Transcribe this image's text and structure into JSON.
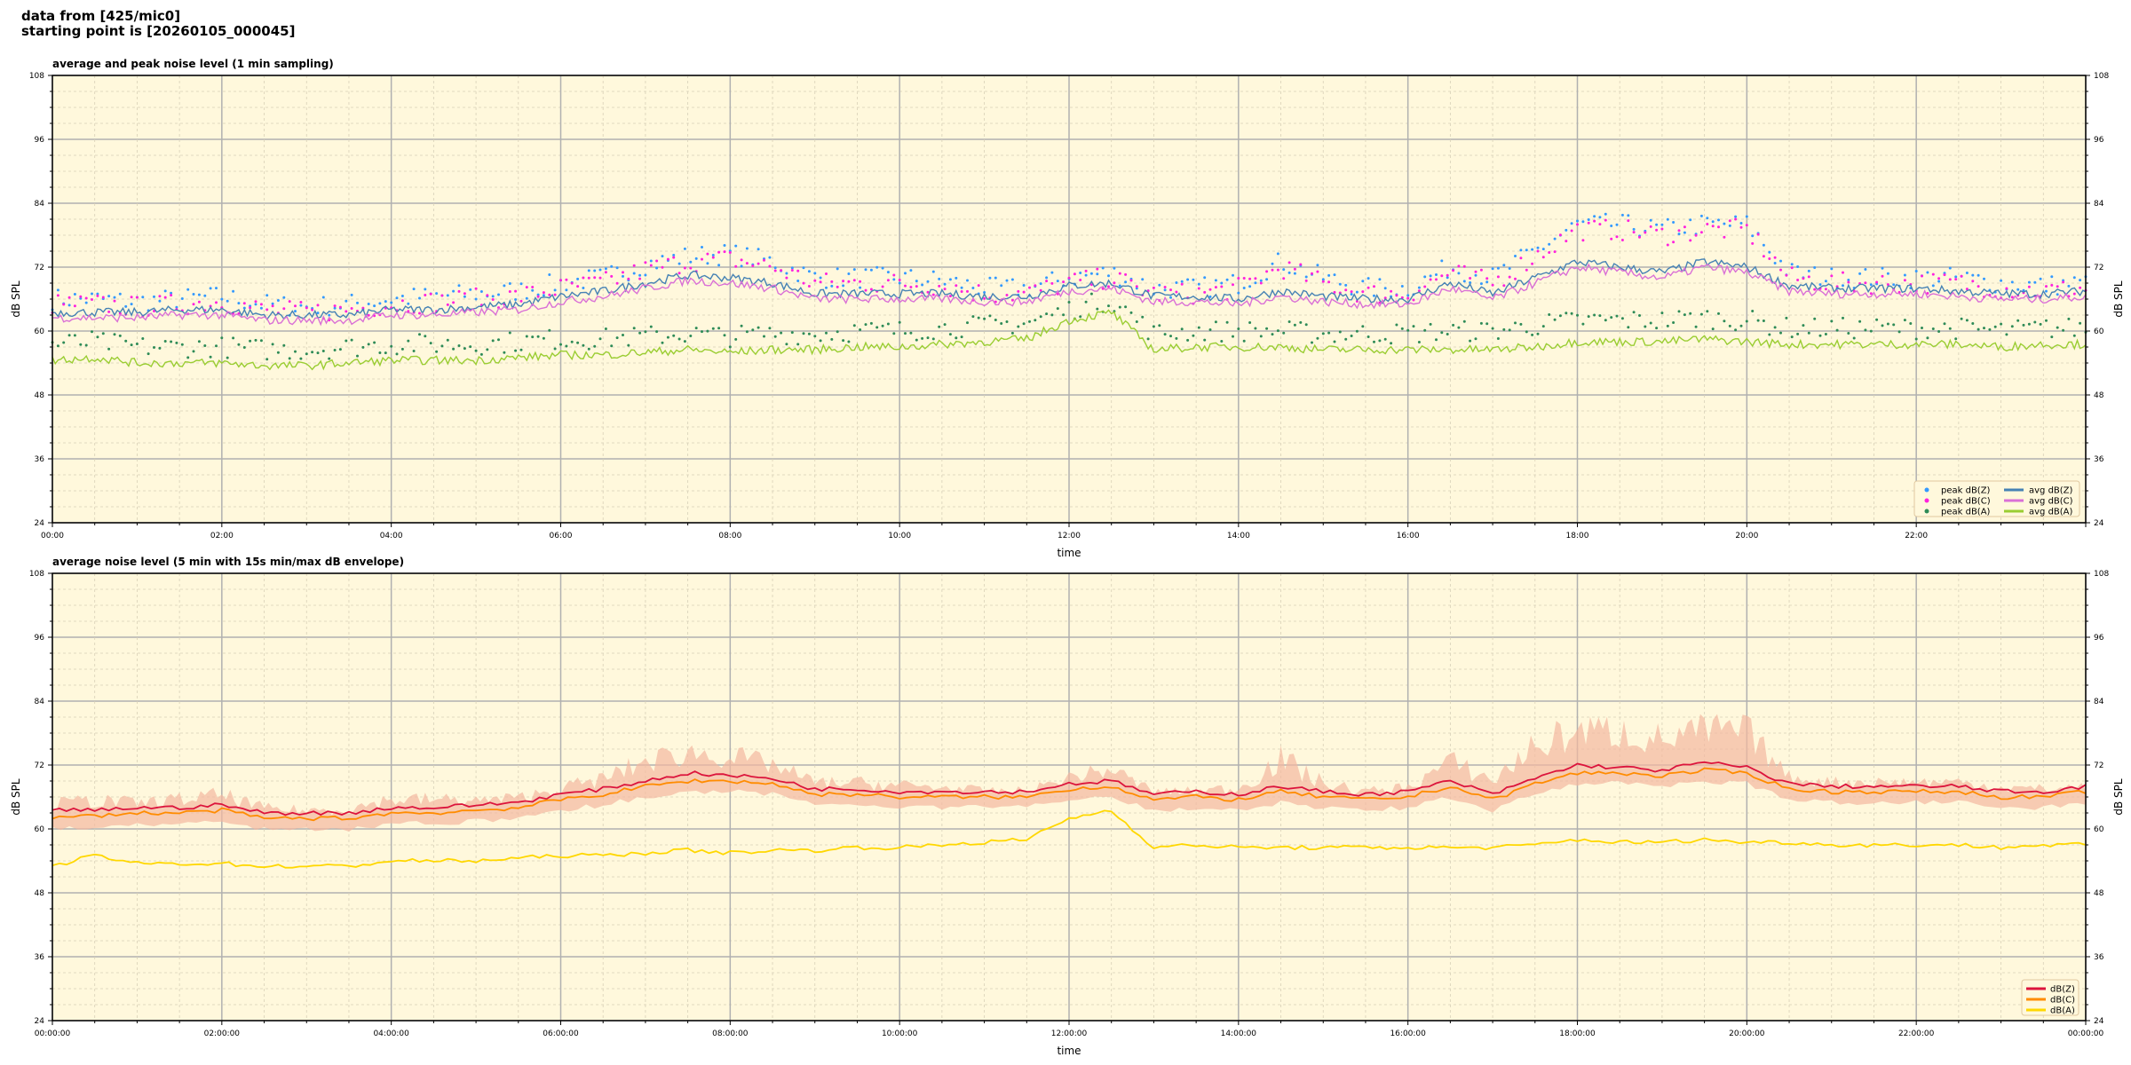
{
  "header": {
    "line1": "data from [425/mic0]",
    "line2": "starting point is [20260105_000045]"
  },
  "colors": {
    "background": "#fff8dc",
    "peak_z": "#3399ff",
    "peak_c": "#ff22dd",
    "peak_a": "#2e8b57",
    "avg_z": "#4682b4",
    "avg_c": "#da70d6",
    "avg_a": "#9acd32",
    "z": "#dc143c",
    "c": "#ff8c00",
    "a": "#ffd700",
    "envelope": "#f4b8a0"
  },
  "chart_data": [
    {
      "type": "line",
      "title": "average and peak noise level (1 min sampling)",
      "xlabel": "time",
      "ylabel": "dB SPL",
      "ylim": [
        24,
        108
      ],
      "xlim_hours": [
        0,
        24
      ],
      "yticks": [
        "108",
        "96",
        "84",
        "72",
        "60",
        "48",
        "36",
        "24"
      ],
      "xticks": [
        "00:00",
        "02:00",
        "04:00",
        "06:00",
        "08:00",
        "10:00",
        "12:00",
        "14:00",
        "16:00",
        "18:00",
        "20:00",
        "22:00"
      ],
      "grid": true,
      "legend": "lower-right",
      "x_hours_step": 0.5,
      "series": [
        {
          "name": "peak dB(Z)",
          "kind": "scatter",
          "color": "peak_z",
          "values": [
            66,
            66,
            65.5,
            66,
            66.5,
            65,
            64.5,
            65,
            66,
            66.5,
            67,
            67.5,
            69,
            70,
            72.5,
            74,
            74.5,
            73,
            70,
            70,
            70,
            69.5,
            68,
            68,
            70,
            71,
            68,
            68,
            69,
            73,
            70,
            68,
            68,
            72,
            70,
            75,
            80,
            80,
            79,
            80,
            80,
            71,
            70,
            70,
            70,
            70,
            69,
            68.5,
            69
          ]
        },
        {
          "name": "peak dB(C)",
          "kind": "scatter",
          "color": "peak_c",
          "values": [
            65,
            65,
            64.5,
            65,
            65.5,
            64,
            63.5,
            64,
            65,
            65.5,
            66,
            66.5,
            68,
            69,
            71.5,
            73,
            73.5,
            72,
            69,
            69,
            69,
            68.5,
            67,
            67,
            69,
            70,
            67,
            67,
            68,
            72,
            69,
            67,
            67,
            71,
            69,
            74,
            79,
            79,
            78,
            79,
            79,
            70,
            69,
            69,
            69,
            69,
            68,
            67.5,
            68
          ]
        },
        {
          "name": "peak dB(A)",
          "kind": "scatter",
          "color": "peak_a",
          "values": [
            57.5,
            58,
            57,
            57,
            57,
            56.5,
            56.5,
            57,
            57.5,
            57.5,
            57.5,
            58,
            58.5,
            58.5,
            59,
            59.5,
            59,
            59.5,
            59.5,
            60,
            60,
            60.5,
            61,
            61.5,
            64,
            66,
            59.5,
            60,
            60,
            60,
            59.5,
            59.5,
            59.5,
            60,
            60,
            61,
            62,
            62,
            62,
            62.5,
            62,
            60.5,
            60.5,
            60.5,
            60.5,
            60.5,
            60,
            60.5,
            60.5
          ]
        },
        {
          "name": "avg dB(Z)",
          "kind": "line",
          "color": "avg_z",
          "values": [
            63.5,
            63.5,
            63.5,
            64,
            64,
            63,
            63,
            63,
            64,
            64,
            64.5,
            65,
            66.5,
            67.5,
            69,
            70.5,
            70,
            69,
            67,
            67,
            67,
            67,
            66.5,
            66.5,
            68.5,
            69,
            66.5,
            66.5,
            66,
            67.5,
            66.5,
            66,
            66,
            69,
            67,
            70,
            73,
            72,
            71,
            73,
            72,
            68.5,
            68,
            68,
            68,
            67.5,
            67,
            67,
            67.5
          ]
        },
        {
          "name": "avg dB(C)",
          "kind": "line",
          "color": "avg_c",
          "values": [
            62.5,
            62.5,
            62.5,
            63,
            63,
            62,
            62,
            62,
            63,
            63,
            63.5,
            64,
            65.5,
            66.5,
            68,
            69.5,
            69,
            68,
            66,
            66,
            66,
            66,
            65.5,
            65.5,
            67.5,
            68,
            65.5,
            65.5,
            65,
            66.5,
            65.5,
            65,
            65,
            68,
            66,
            69,
            72,
            71,
            70,
            72,
            71,
            67.5,
            67,
            67,
            67,
            66.5,
            66,
            66,
            66.5
          ]
        },
        {
          "name": "avg dB(A)",
          "kind": "line",
          "color": "avg_a",
          "values": [
            54.5,
            55,
            54,
            54,
            54,
            53.5,
            53.5,
            54,
            54.5,
            54.5,
            54.5,
            55,
            55.5,
            55.5,
            56,
            56.5,
            56,
            56.5,
            56.5,
            57,
            57,
            57.5,
            58,
            58.5,
            62,
            63.5,
            56.5,
            57,
            57,
            57,
            56.5,
            56.5,
            56.5,
            56.5,
            56.5,
            57,
            58,
            58,
            58,
            58.5,
            58,
            57.5,
            57.5,
            57.5,
            57.5,
            57.5,
            57,
            57.5,
            57.5
          ]
        }
      ]
    },
    {
      "type": "line",
      "title": "average noise level (5 min with 15s min/max dB envelope)",
      "xlabel": "time",
      "ylabel": "dB SPL",
      "ylim": [
        24,
        108
      ],
      "xlim_hours": [
        0,
        24
      ],
      "yticks": [
        "108",
        "96",
        "84",
        "72",
        "60",
        "48",
        "36",
        "24"
      ],
      "xticks": [
        "00:00:00",
        "02:00:00",
        "04:00:00",
        "06:00:00",
        "08:00:00",
        "10:00:00",
        "12:00:00",
        "14:00:00",
        "16:00:00",
        "18:00:00",
        "20:00:00",
        "22:00:00",
        "00:00:00"
      ],
      "grid": true,
      "legend": "lower-right",
      "x_hours_step": 0.5,
      "envelope_max": [
        66,
        67,
        66,
        67,
        68,
        65,
        64.5,
        65,
        67,
        67,
        66.5,
        67,
        69,
        71,
        75,
        77,
        76,
        74,
        70,
        70,
        69.5,
        69,
        68,
        68,
        71,
        73,
        68,
        68,
        69,
        76,
        70,
        68,
        69,
        75,
        71,
        79,
        82,
        82,
        80,
        82,
        82,
        71,
        70,
        70,
        70,
        70,
        69,
        68.5,
        69
      ],
      "series": [
        {
          "name": "dB(Z)",
          "kind": "line",
          "color": "z",
          "values": [
            63.5,
            63.5,
            64,
            64,
            64.5,
            63,
            63,
            63,
            64,
            64,
            64.5,
            65,
            66.5,
            67.5,
            69,
            70.5,
            70,
            69.5,
            67.5,
            67.5,
            67,
            67,
            67,
            67,
            68.5,
            69,
            66.5,
            67,
            66.5,
            68,
            67,
            66.5,
            67,
            69,
            66.5,
            69.5,
            72,
            71.5,
            71,
            72.5,
            71.5,
            68.5,
            68,
            68,
            68,
            68,
            67,
            67,
            68
          ]
        },
        {
          "name": "dB(C)",
          "kind": "line",
          "color": "c",
          "values": [
            62,
            62.5,
            63,
            63,
            63.5,
            62,
            62,
            62,
            63,
            63,
            63.5,
            64,
            65.5,
            66.5,
            68,
            69,
            69,
            68.5,
            66.5,
            66.5,
            66,
            66,
            66,
            66,
            67.5,
            68,
            65.5,
            66,
            65.5,
            67,
            66,
            65.5,
            66,
            68,
            65.5,
            68.5,
            70.5,
            70.5,
            70,
            71,
            70.5,
            67.5,
            67,
            67,
            67,
            67,
            66,
            66,
            67
          ]
        },
        {
          "name": "dB(A)",
          "kind": "line",
          "color": "a",
          "values": [
            53,
            55,
            53.5,
            53.5,
            53.5,
            53,
            53,
            53,
            54,
            54,
            54,
            54.5,
            55,
            55,
            55.5,
            56,
            55.5,
            56,
            56,
            56.5,
            56.5,
            57,
            57.5,
            58,
            62,
            63.5,
            56.5,
            57,
            56.5,
            56.5,
            56.5,
            56.5,
            56.5,
            56.5,
            56.5,
            57,
            58,
            57.5,
            57.5,
            58,
            57.5,
            57.5,
            57,
            57,
            57,
            57,
            56.5,
            57,
            57
          ]
        }
      ]
    }
  ]
}
